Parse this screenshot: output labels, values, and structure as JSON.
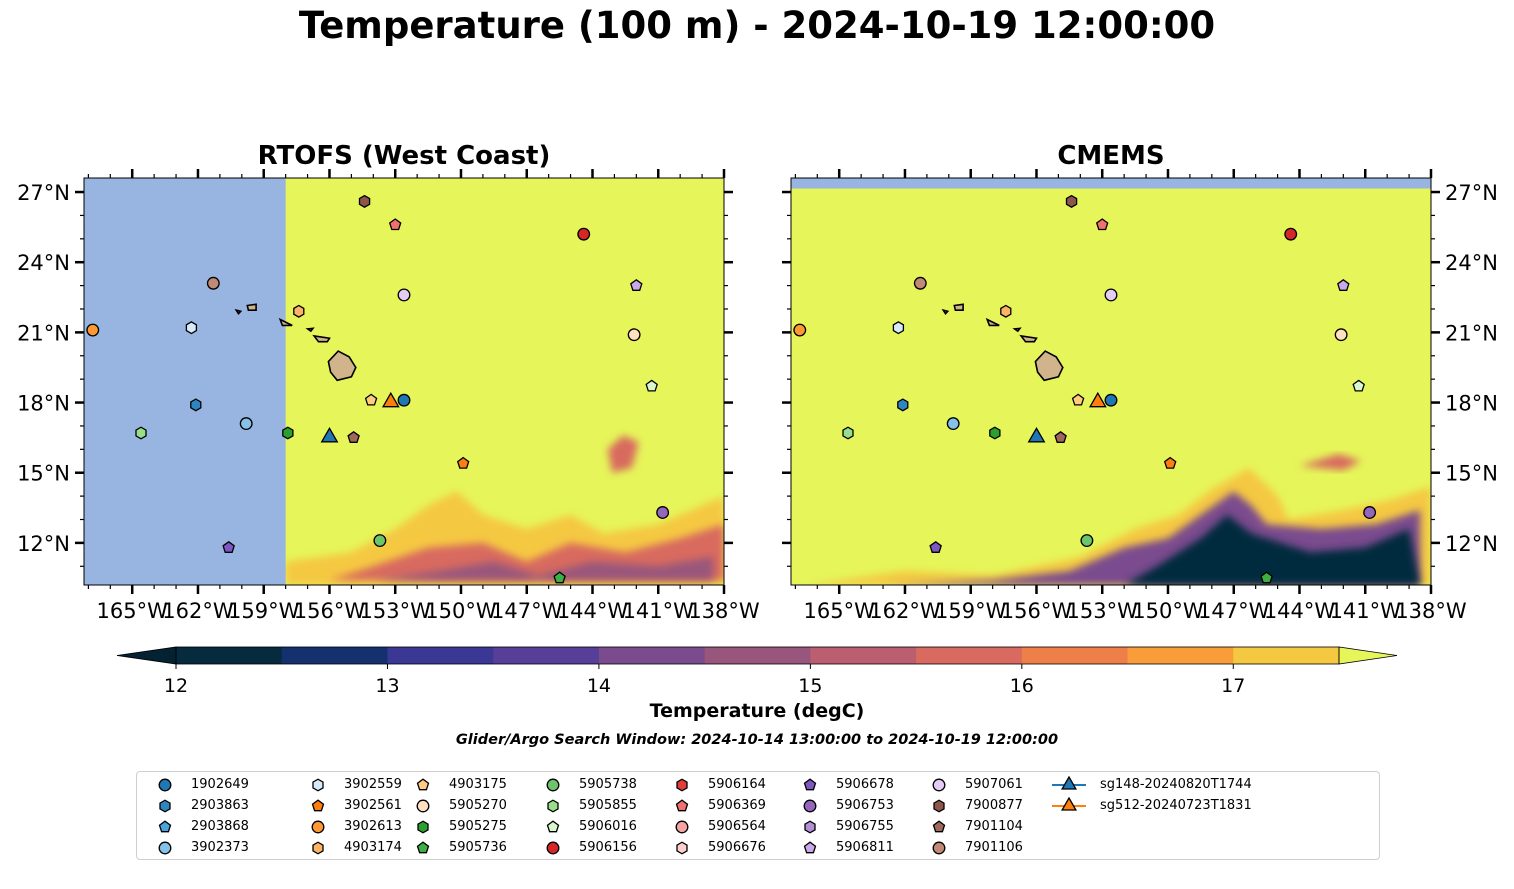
{
  "title": "Temperature (100 m) - 2024-10-19 12:00:00",
  "panels": [
    {
      "id": "rtofs",
      "title": "RTOFS (West Coast)"
    },
    {
      "id": "cmems",
      "title": "CMEMS"
    }
  ],
  "map": {
    "lon_range": [
      -167.2,
      -138
    ],
    "lat_range": [
      10.2,
      27.6
    ],
    "x_ticks": [
      -165,
      -162,
      -159,
      -156,
      -153,
      -150,
      -147,
      -144,
      -141,
      -138
    ],
    "x_tick_labels": [
      "165°W",
      "162°W",
      "159°W",
      "156°W",
      "153°W",
      "150°W",
      "147°W",
      "144°W",
      "141°W",
      "138°W"
    ],
    "y_ticks": [
      12,
      15,
      18,
      21,
      24,
      27
    ],
    "y_tick_labels": [
      "12°N",
      "15°N",
      "18°N",
      "21°N",
      "24°N",
      "27°N"
    ],
    "land_color": "#d2b48c",
    "nodata_color": "#98b4e0",
    "rtofs_nodata_west_of_lon": -158.0
  },
  "colorbar": {
    "label": "Temperature (degC)",
    "range": [
      12,
      17.5
    ],
    "tick_values": [
      12,
      13,
      14,
      15,
      16,
      17
    ],
    "tick_labels": [
      "12",
      "13",
      "14",
      "15",
      "16",
      "17"
    ],
    "colors": [
      "#062a3e",
      "#15306e",
      "#3a3894",
      "#573e98",
      "#7a4c8e",
      "#99567c",
      "#bb5f70",
      "#d86a5f",
      "#ef7f48",
      "#f99d3a",
      "#f5c842"
    ],
    "under_color": "#042231",
    "over_color": "#e6f55a"
  },
  "search_window": "Glider/Argo Search Window: 2024-10-14 13:00:00 to 2024-10-19 12:00:00",
  "legend": [
    {
      "label": "1902649",
      "marker": "circle",
      "color": "#1f77b4"
    },
    {
      "label": "2903863",
      "marker": "hexagon",
      "color": "#2e86c1"
    },
    {
      "label": "2903868",
      "marker": "pentagon",
      "color": "#4aa3df"
    },
    {
      "label": "3902373",
      "marker": "circle",
      "color": "#85c1e9"
    },
    {
      "label": "3902559",
      "marker": "hexagon",
      "color": "#d6eaf8"
    },
    {
      "label": "3902561",
      "marker": "pentagon",
      "color": "#ff7f0e"
    },
    {
      "label": "3902613",
      "marker": "circle",
      "color": "#ff9933"
    },
    {
      "label": "4903174",
      "marker": "hexagon",
      "color": "#ffb366"
    },
    {
      "label": "4903175",
      "marker": "pentagon",
      "color": "#ffcc80"
    },
    {
      "label": "5905270",
      "marker": "circle",
      "color": "#ffe0bf"
    },
    {
      "label": "5905275",
      "marker": "hexagon",
      "color": "#2ca02c"
    },
    {
      "label": "5905736",
      "marker": "pentagon",
      "color": "#3cb043"
    },
    {
      "label": "5905738",
      "marker": "circle",
      "color": "#6cc46c"
    },
    {
      "label": "5905855",
      "marker": "hexagon",
      "color": "#98df8a"
    },
    {
      "label": "5906016",
      "marker": "pentagon",
      "color": "#d9f7cf"
    },
    {
      "label": "5906156",
      "marker": "circle",
      "color": "#d62728"
    },
    {
      "label": "5906164",
      "marker": "hexagon",
      "color": "#e03c3c"
    },
    {
      "label": "5906369",
      "marker": "pentagon",
      "color": "#f07070"
    },
    {
      "label": "5906564",
      "marker": "circle",
      "color": "#f5a3a3"
    },
    {
      "label": "5906676",
      "marker": "hexagon",
      "color": "#fbd0d0"
    },
    {
      "label": "5906678",
      "marker": "pentagon",
      "color": "#7e57c2"
    },
    {
      "label": "5906753",
      "marker": "circle",
      "color": "#9467bd"
    },
    {
      "label": "5906755",
      "marker": "hexagon",
      "color": "#b190d6"
    },
    {
      "label": "5906811",
      "marker": "pentagon",
      "color": "#c9a9e9"
    },
    {
      "label": "5907061",
      "marker": "circle",
      "color": "#e4ccf5"
    },
    {
      "label": "7900877",
      "marker": "hexagon",
      "color": "#8c564b"
    },
    {
      "label": "7901104",
      "marker": "pentagon",
      "color": "#a0685c"
    },
    {
      "label": "7901106",
      "marker": "circle",
      "color": "#c08a76"
    },
    {
      "label": "sg148-20240820T1744",
      "marker": "triangle",
      "color": "#1f77b4",
      "line": true
    },
    {
      "label": "sg512-20240723T1831",
      "marker": "triangle",
      "color": "#ff7f0e",
      "line": true
    }
  ],
  "floats": [
    {
      "id": "1902649",
      "lon": -152.6,
      "lat": 18.1
    },
    {
      "id": "2903863",
      "lon": -162.1,
      "lat": 17.9
    },
    {
      "id": "3902373",
      "lon": -159.8,
      "lat": 17.1
    },
    {
      "id": "3902559",
      "lon": -162.3,
      "lat": 21.2
    },
    {
      "id": "3902561",
      "lon": -149.9,
      "lat": 15.4
    },
    {
      "id": "3902613",
      "lon": -166.8,
      "lat": 21.1
    },
    {
      "id": "4903174",
      "lon": -157.4,
      "lat": 21.9
    },
    {
      "id": "4903175",
      "lon": -154.1,
      "lat": 18.1
    },
    {
      "id": "5905270",
      "lon": -142.1,
      "lat": 20.9
    },
    {
      "id": "5905275",
      "lon": -157.9,
      "lat": 16.7
    },
    {
      "id": "5905736",
      "lon": -145.5,
      "lat": 10.5
    },
    {
      "id": "5905738",
      "lon": -153.7,
      "lat": 12.1
    },
    {
      "id": "5905855",
      "lon": -164.6,
      "lat": 16.7
    },
    {
      "id": "5906016",
      "lon": -141.3,
      "lat": 18.7
    },
    {
      "id": "5906156",
      "lon": -144.4,
      "lat": 25.2
    },
    {
      "id": "5906369",
      "lon": -153.0,
      "lat": 25.6
    },
    {
      "id": "5906678",
      "lon": -160.6,
      "lat": 11.8
    },
    {
      "id": "5906753",
      "lon": -140.8,
      "lat": 13.3
    },
    {
      "id": "5906811",
      "lon": -142.0,
      "lat": 23.0
    },
    {
      "id": "5907061",
      "lon": -152.6,
      "lat": 22.6
    },
    {
      "id": "7900877",
      "lon": -154.4,
      "lat": 26.6
    },
    {
      "id": "7901104",
      "lon": -154.9,
      "lat": 16.5
    },
    {
      "id": "7901106",
      "lon": -161.3,
      "lat": 23.1
    },
    {
      "id": "sg148-20240820T1744",
      "lon": -156.0,
      "lat": 16.6
    },
    {
      "id": "sg512-20240723T1831",
      "lon": -153.2,
      "lat": 18.1
    }
  ]
}
